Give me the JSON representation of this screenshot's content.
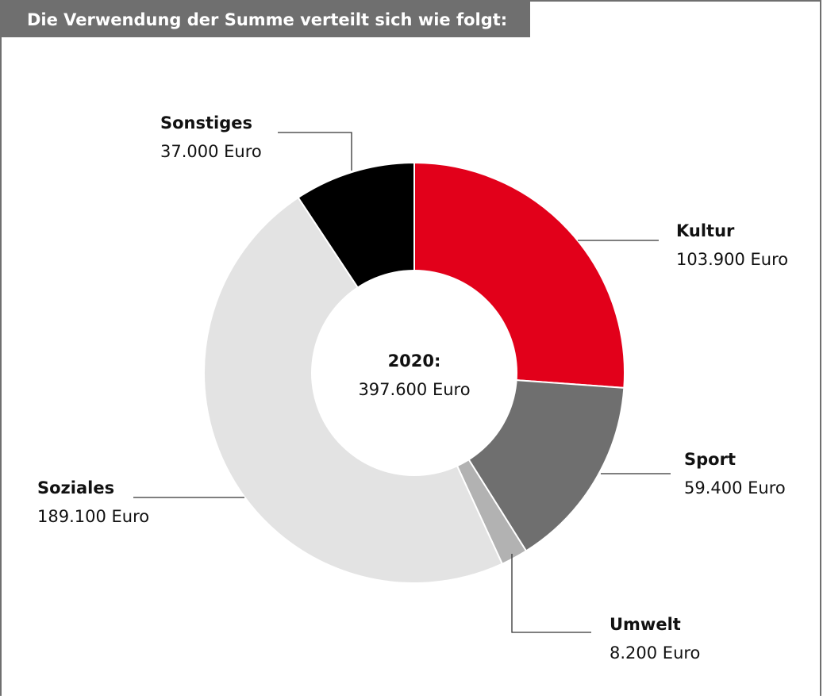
{
  "chart_data": {
    "type": "donut",
    "title": "Die Verwendung der Summe verteilt sich wie folgt:",
    "categories": [
      "Kultur",
      "Sport",
      "Umwelt",
      "Soziales",
      "Sonstiges"
    ],
    "values": [
      103900,
      59400,
      8200,
      189100,
      37000
    ],
    "value_labels": [
      "103.900 Euro",
      "59.400 Euro",
      "8.200 Euro",
      "189.100 Euro",
      "37.000 Euro"
    ],
    "colors": [
      "#e2001a",
      "#6f6f6f",
      "#b2b2b2",
      "#e3e3e3",
      "#000000"
    ],
    "center_title": "2020:",
    "total": 397600,
    "total_label": "397.600 Euro"
  }
}
